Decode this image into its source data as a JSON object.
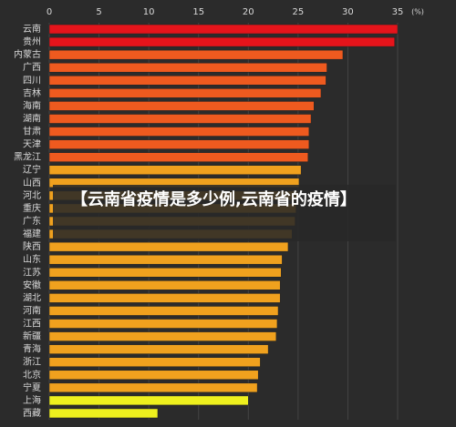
{
  "chart_data": {
    "type": "hbar",
    "unit_label": "(%)",
    "categories": [
      "云南",
      "贵州",
      "内蒙古",
      "广西",
      "四川",
      "吉林",
      "海南",
      "湖南",
      "甘肃",
      "天津",
      "黑龙江",
      "辽宁",
      "山西",
      "河北",
      "重庆",
      "广东",
      "福建",
      "陕西",
      "山东",
      "江苏",
      "安徽",
      "湖北",
      "河南",
      "江西",
      "新疆",
      "青海",
      "浙江",
      "北京",
      "宁夏",
      "上海",
      "西藏"
    ],
    "values": [
      35.0,
      34.7,
      29.5,
      27.9,
      27.8,
      27.3,
      26.6,
      26.3,
      26.1,
      26.1,
      26.0,
      25.3,
      25.1,
      25.0,
      24.8,
      24.7,
      24.4,
      24.0,
      23.4,
      23.3,
      23.2,
      23.2,
      23.0,
      22.9,
      22.8,
      22.0,
      21.2,
      21.0,
      20.9,
      20.0,
      10.9
    ],
    "colors": [
      "#e5141b",
      "#e5141b",
      "#ee5a1f",
      "#ee5a1f",
      "#ee5a1f",
      "#ee5a1f",
      "#ee5a1f",
      "#ee5a1f",
      "#ee5a1f",
      "#ee5a1f",
      "#ee5a1f",
      "#f0a11e",
      "#f0a11e",
      "#f0a11e",
      "#f0a11e",
      "#f0a11e",
      "#f0a11e",
      "#f0a11e",
      "#f0a11e",
      "#f0a11e",
      "#f0a11e",
      "#f0a11e",
      "#f0a11e",
      "#f0a11e",
      "#f0a11e",
      "#f0a11e",
      "#f0a11e",
      "#f0a11e",
      "#f0a11e",
      "#eef01e",
      "#eef01e"
    ],
    "xlim": [
      0,
      35
    ],
    "xticks": [
      0,
      5,
      10,
      15,
      20,
      25,
      30,
      35
    ],
    "grid": true
  },
  "overlay": {
    "title": "【云南省疫情是多少例,云南省的疫情】"
  }
}
